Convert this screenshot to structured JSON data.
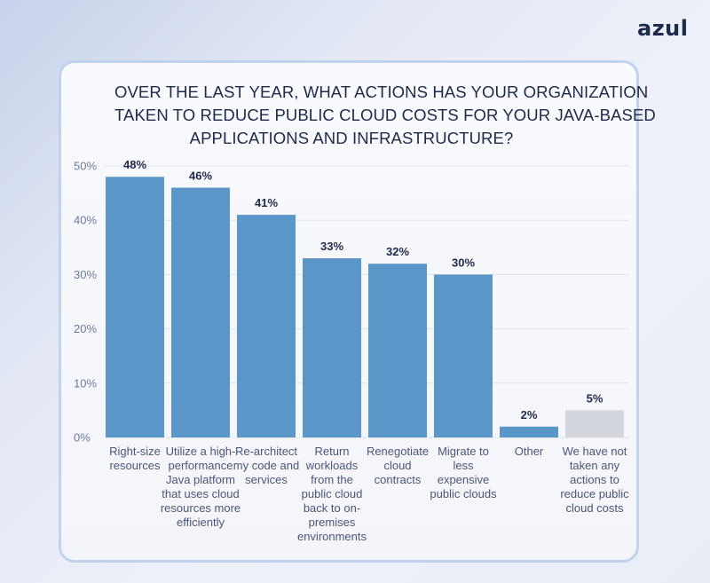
{
  "brand": {
    "logo_text": "azul"
  },
  "chart_data": {
    "type": "bar",
    "title_lines": [
      "OVER THE LAST YEAR, WHAT ACTIONS HAS YOUR ORGANIZATION",
      "TAKEN TO REDUCE PUBLIC CLOUD COSTS FOR YOUR JAVA-BASED",
      "APPLICATIONS AND INFRASTRUCTURE?"
    ],
    "categories": [
      [
        "Right-size",
        "resources"
      ],
      [
        "Utilize a high-",
        "performance",
        "Java platform",
        "that uses cloud",
        "resources more",
        "efficiently"
      ],
      [
        "Re-architect",
        "my code and",
        "services"
      ],
      [
        "Return",
        "workloads",
        "from the",
        "public cloud",
        "back to on-",
        "premises",
        "environments"
      ],
      [
        "Renegotiate",
        "cloud",
        "contracts"
      ],
      [
        "Migrate to",
        "less",
        "expensive",
        "public clouds"
      ],
      [
        "Other"
      ],
      [
        "We have not",
        "taken any",
        "actions to",
        "reduce public",
        "cloud costs"
      ]
    ],
    "values": [
      48,
      46,
      41,
      33,
      32,
      30,
      2,
      5
    ],
    "value_labels": [
      "48%",
      "46%",
      "41%",
      "33%",
      "32%",
      "30%",
      "2%",
      "5%"
    ],
    "yticks": [
      {
        "value": 0,
        "label": "0%"
      },
      {
        "value": 10,
        "label": "10%"
      },
      {
        "value": 20,
        "label": "20%"
      },
      {
        "value": 30,
        "label": "30%"
      },
      {
        "value": 40,
        "label": "40%"
      },
      {
        "value": 50,
        "label": "50%"
      }
    ],
    "ylim": [
      0,
      50
    ],
    "grid": true,
    "colors": {
      "bar": "#5b96c9",
      "bar_highlight": "#d3d7dd",
      "grid": "#dfe3ea",
      "value_label": "#1e2a4a",
      "tick_label": "#6c7a9a"
    },
    "highlight_index": 7
  }
}
